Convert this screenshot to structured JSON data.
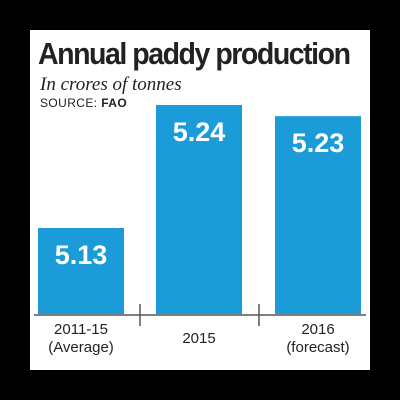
{
  "chart_data": {
    "type": "bar",
    "title": "Annual paddy production",
    "subtitle": "In crores of tonnes",
    "source_label": "SOURCE:",
    "source": "FAO",
    "categories": [
      [
        "2011-15",
        "(Average)"
      ],
      [
        "2015"
      ],
      [
        "2016",
        "(forecast)"
      ]
    ],
    "values": [
      5.13,
      5.24,
      5.23
    ],
    "value_labels": [
      "5.13",
      "5.24",
      "5.23"
    ],
    "bar_color": "#1b9bd7"
  }
}
